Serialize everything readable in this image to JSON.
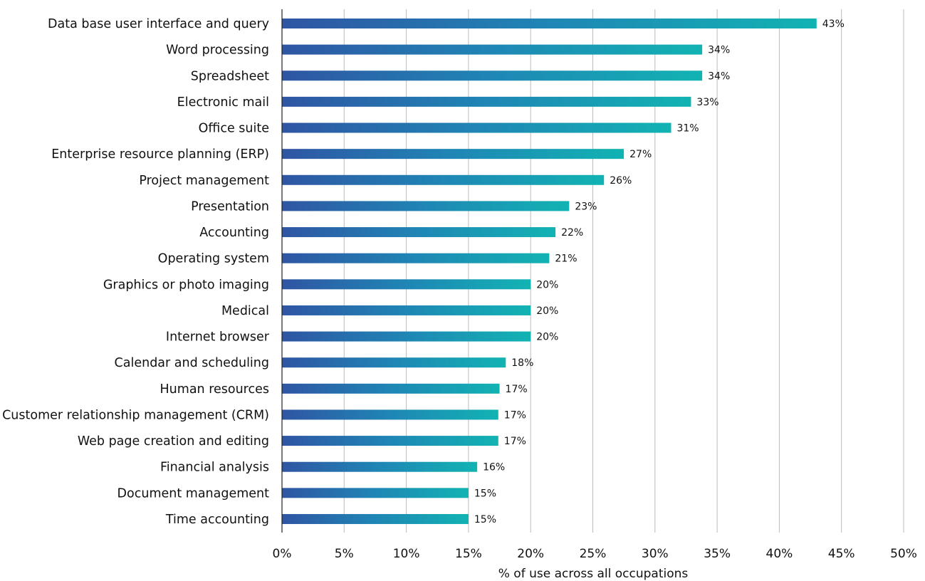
{
  "chart_data": {
    "type": "bar",
    "orientation": "horizontal",
    "categories": [
      "Data base user interface and query",
      "Word processing",
      "Spreadsheet",
      "Electronic mail",
      "Office suite",
      "Enterprise resource planning (ERP)",
      "Project management",
      "Presentation",
      "Accounting",
      "Operating system",
      "Graphics or photo imaging",
      "Medical",
      "Internet browser",
      "Calendar and scheduling",
      "Human resources",
      "Customer relationship management (CRM)",
      "Web page creation and editing",
      "Financial analysis",
      "Document management",
      "Time accounting"
    ],
    "values": [
      43,
      33.8,
      33.8,
      32.9,
      31.3,
      27.5,
      25.9,
      23.1,
      22,
      21.5,
      20,
      20,
      20,
      18,
      17.5,
      17.4,
      17.4,
      15.7,
      15,
      15
    ],
    "data_labels": [
      "43%",
      "34%",
      "34%",
      "33%",
      "31%",
      "27%",
      "26%",
      "23%",
      "22%",
      "21%",
      "20%",
      "20%",
      "20%",
      "18%",
      "17%",
      "17%",
      "17%",
      "16%",
      "15%",
      "15%"
    ],
    "xlim": [
      0,
      50
    ],
    "xticks": [
      0,
      5,
      10,
      15,
      20,
      25,
      30,
      35,
      40,
      45,
      50
    ],
    "xtick_labels": [
      "0%",
      "5%",
      "10%",
      "15%",
      "20%",
      "25%",
      "30%",
      "35%",
      "40%",
      "45%",
      "50%"
    ],
    "xlabel": "% of use across all occupations",
    "ylabel": "",
    "title": "",
    "grid": "vertical",
    "legend": "none",
    "colors": {
      "bar_gradient_start": "#2f55a3",
      "bar_gradient_mid": "#1f86b5",
      "bar_gradient_end": "#12b3b3",
      "grid": "#bbbbbb",
      "axis": "#222222",
      "text": "#111111"
    }
  }
}
